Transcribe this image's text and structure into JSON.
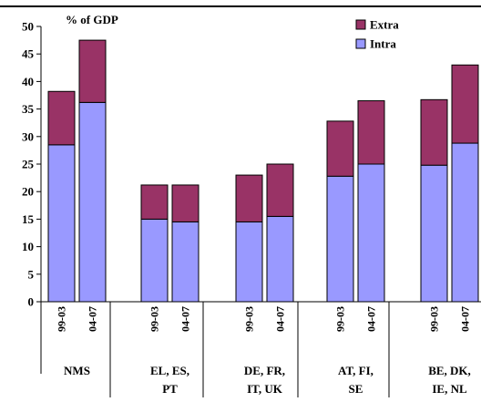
{
  "chart_data": {
    "type": "bar",
    "stacked": true,
    "unit_label": "% of GDP",
    "ylim": [
      0,
      50
    ],
    "yticks": [
      0,
      5,
      10,
      15,
      20,
      25,
      30,
      35,
      40,
      45,
      50
    ],
    "grid": false,
    "legend_position": "top-right",
    "groups": [
      {
        "name_lines": [
          "NMS"
        ],
        "periods": [
          "99-03",
          "04-07"
        ]
      },
      {
        "name_lines": [
          "EL, ES,",
          "PT"
        ],
        "periods": [
          "99-03",
          "04-07"
        ]
      },
      {
        "name_lines": [
          "DE, FR,",
          "IT, UK"
        ],
        "periods": [
          "99-03",
          "04-07"
        ]
      },
      {
        "name_lines": [
          "AT, FI,",
          "SE"
        ],
        "periods": [
          "99-03",
          "04-07"
        ]
      },
      {
        "name_lines": [
          "BE, DK,",
          "IE, NL"
        ],
        "periods": [
          "99-03",
          "04-07"
        ]
      }
    ],
    "series": [
      {
        "name": "Intra",
        "color": "#9999ff",
        "values": [
          28.5,
          36.2,
          15.0,
          14.5,
          14.5,
          15.5,
          22.8,
          25.0,
          24.8,
          28.8
        ]
      },
      {
        "name": "Extra",
        "color": "#993366",
        "values": [
          9.7,
          11.3,
          6.2,
          6.7,
          8.5,
          9.5,
          10.0,
          11.5,
          11.9,
          14.2
        ]
      }
    ],
    "legend_order": [
      "Extra",
      "Intra"
    ]
  }
}
